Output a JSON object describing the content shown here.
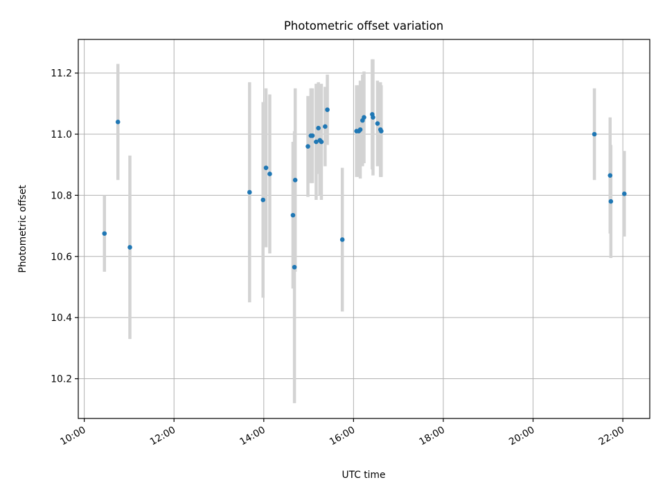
{
  "chart_data": {
    "type": "scatter",
    "title": "Photometric offset variation",
    "xlabel": "UTC time",
    "ylabel": "Photometric offset",
    "x_is_time": true,
    "xlim": [
      "09:52",
      "22:36"
    ],
    "ylim": [
      10.07,
      11.31
    ],
    "x_ticks": [
      "10:00",
      "12:00",
      "14:00",
      "16:00",
      "18:00",
      "20:00",
      "22:00"
    ],
    "y_ticks": [
      10.2,
      10.4,
      10.6,
      10.8,
      11.0,
      11.2
    ],
    "grid": true,
    "colors": {
      "point": "#1f77b4",
      "errorbar": "#d3d3d3"
    },
    "series": [
      {
        "points": [
          {
            "x": "10:27",
            "y": 10.675,
            "err": 0.125
          },
          {
            "x": "10:45",
            "y": 11.04,
            "err": 0.19
          },
          {
            "x": "11:01",
            "y": 10.63,
            "err": 0.3
          },
          {
            "x": "13:41",
            "y": 10.81,
            "err": 0.36
          },
          {
            "x": "13:59",
            "y": 10.785,
            "err": 0.32
          },
          {
            "x": "14:03",
            "y": 10.89,
            "err": 0.26
          },
          {
            "x": "14:08",
            "y": 10.87,
            "err": 0.26
          },
          {
            "x": "14:39",
            "y": 10.735,
            "err": 0.24
          },
          {
            "x": "14:41",
            "y": 10.565,
            "err": 0.445
          },
          {
            "x": "14:42",
            "y": 10.85,
            "err": 0.3
          },
          {
            "x": "14:59",
            "y": 10.96,
            "err": 0.165
          },
          {
            "x": "15:03",
            "y": 10.995,
            "err": 0.155
          },
          {
            "x": "15:05",
            "y": 10.995,
            "err": 0.155
          },
          {
            "x": "15:10",
            "y": 10.975,
            "err": 0.19
          },
          {
            "x": "15:13",
            "y": 11.02,
            "err": 0.15
          },
          {
            "x": "15:15",
            "y": 10.98,
            "err": 0.18
          },
          {
            "x": "15:17",
            "y": 10.975,
            "err": 0.19
          },
          {
            "x": "15:22",
            "y": 11.025,
            "err": 0.13
          },
          {
            "x": "15:25",
            "y": 11.08,
            "err": 0.115
          },
          {
            "x": "15:45",
            "y": 10.655,
            "err": 0.235
          },
          {
            "x": "16:04",
            "y": 11.01,
            "err": 0.15
          },
          {
            "x": "16:07",
            "y": 11.01,
            "err": 0.15
          },
          {
            "x": "16:09",
            "y": 11.015,
            "err": 0.16
          },
          {
            "x": "16:12",
            "y": 11.045,
            "err": 0.15
          },
          {
            "x": "16:14",
            "y": 11.055,
            "err": 0.15
          },
          {
            "x": "16:25",
            "y": 11.065,
            "err": 0.18
          },
          {
            "x": "16:26",
            "y": 11.055,
            "err": 0.19
          },
          {
            "x": "16:32",
            "y": 11.035,
            "err": 0.14
          },
          {
            "x": "16:36",
            "y": 11.015,
            "err": 0.155
          },
          {
            "x": "16:37",
            "y": 11.01,
            "err": 0.15
          },
          {
            "x": "21:22",
            "y": 11.0,
            "err": 0.15
          },
          {
            "x": "21:43",
            "y": 10.865,
            "err": 0.19
          },
          {
            "x": "21:44",
            "y": 10.78,
            "err": 0.185
          },
          {
            "x": "22:02",
            "y": 10.805,
            "err": 0.14
          }
        ]
      }
    ]
  }
}
